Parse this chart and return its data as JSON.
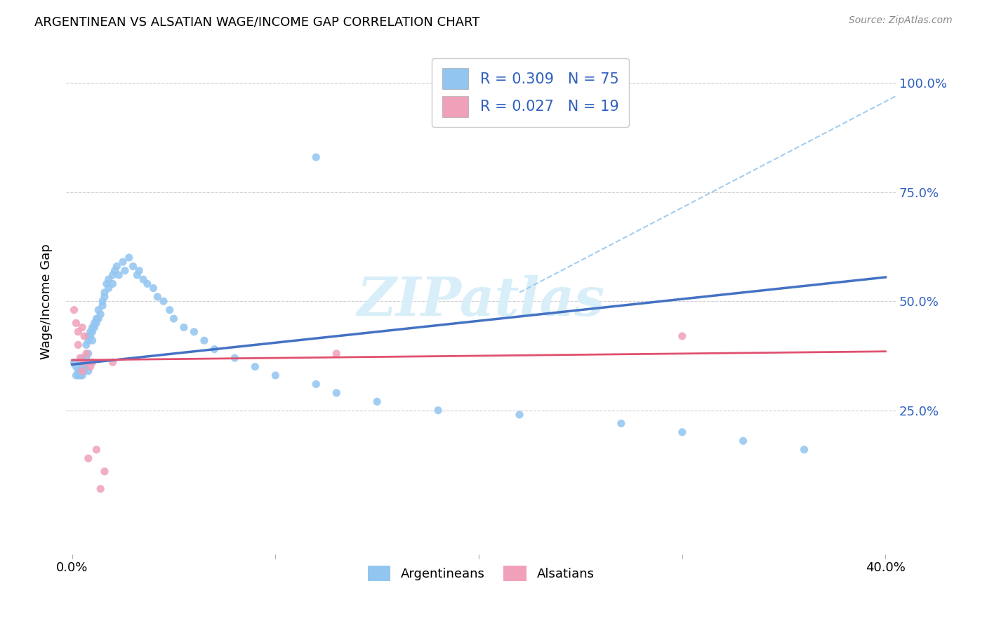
{
  "title": "ARGENTINEAN VS ALSATIAN WAGE/INCOME GAP CORRELATION CHART",
  "source": "Source: ZipAtlas.com",
  "ylabel": "Wage/Income Gap",
  "background_color": "#ffffff",
  "grid_color": "#d0d0d0",
  "argentinean_color": "#92C5F0",
  "alsatian_color": "#F0A0B8",
  "line_blue": "#4472C4",
  "line_pink": "#E05070",
  "dash_color": "#92C5F0",
  "watermark_color": "#D8EEF8",
  "legend_text_color": "#3060C0",
  "argentinean_R": "0.309",
  "argentinean_N": "75",
  "alsatian_R": "0.027",
  "alsatian_N": "19",
  "xlim_min": -0.003,
  "xlim_max": 0.405,
  "ylim_min": -0.08,
  "ylim_max": 1.08,
  "x_ticks": [
    0.0,
    0.1,
    0.2,
    0.3,
    0.4
  ],
  "x_tick_labels": [
    "0.0%",
    "",
    "",
    "",
    "40.0%"
  ],
  "y_ticks_right": [
    0.25,
    0.5,
    0.75,
    1.0
  ],
  "y_tick_labels_right": [
    "25.0%",
    "50.0%",
    "75.0%",
    "100.0%"
  ],
  "arg_x": [
    0.001,
    0.002,
    0.002,
    0.003,
    0.003,
    0.004,
    0.004,
    0.004,
    0.005,
    0.005,
    0.005,
    0.006,
    0.006,
    0.006,
    0.007,
    0.007,
    0.007,
    0.008,
    0.008,
    0.008,
    0.009,
    0.009,
    0.01,
    0.01,
    0.01,
    0.011,
    0.011,
    0.012,
    0.012,
    0.013,
    0.013,
    0.014,
    0.015,
    0.015,
    0.016,
    0.016,
    0.017,
    0.018,
    0.018,
    0.02,
    0.02,
    0.021,
    0.022,
    0.023,
    0.025,
    0.026,
    0.028,
    0.03,
    0.032,
    0.033,
    0.035,
    0.037,
    0.04,
    0.042,
    0.045,
    0.048,
    0.05,
    0.055,
    0.06,
    0.065,
    0.07,
    0.08,
    0.09,
    0.1,
    0.12,
    0.13,
    0.15,
    0.18,
    0.22,
    0.27,
    0.3,
    0.33,
    0.36,
    0.12,
    0.008
  ],
  "arg_y": [
    0.36,
    0.35,
    0.33,
    0.34,
    0.33,
    0.36,
    0.34,
    0.33,
    0.37,
    0.35,
    0.33,
    0.36,
    0.35,
    0.34,
    0.4,
    0.37,
    0.36,
    0.42,
    0.41,
    0.38,
    0.43,
    0.42,
    0.44,
    0.43,
    0.41,
    0.45,
    0.44,
    0.46,
    0.45,
    0.48,
    0.46,
    0.47,
    0.5,
    0.49,
    0.52,
    0.51,
    0.54,
    0.55,
    0.53,
    0.56,
    0.54,
    0.57,
    0.58,
    0.56,
    0.59,
    0.57,
    0.6,
    0.58,
    0.56,
    0.57,
    0.55,
    0.54,
    0.53,
    0.51,
    0.5,
    0.48,
    0.46,
    0.44,
    0.43,
    0.41,
    0.39,
    0.37,
    0.35,
    0.33,
    0.31,
    0.29,
    0.27,
    0.25,
    0.24,
    0.22,
    0.2,
    0.18,
    0.16,
    0.83,
    0.34
  ],
  "als_x": [
    0.001,
    0.002,
    0.003,
    0.003,
    0.004,
    0.005,
    0.005,
    0.006,
    0.006,
    0.007,
    0.008,
    0.009,
    0.01,
    0.012,
    0.014,
    0.016,
    0.02,
    0.13,
    0.3
  ],
  "als_y": [
    0.48,
    0.45,
    0.43,
    0.4,
    0.37,
    0.44,
    0.34,
    0.42,
    0.36,
    0.38,
    0.14,
    0.35,
    0.36,
    0.16,
    0.07,
    0.11,
    0.36,
    0.38,
    0.42
  ]
}
